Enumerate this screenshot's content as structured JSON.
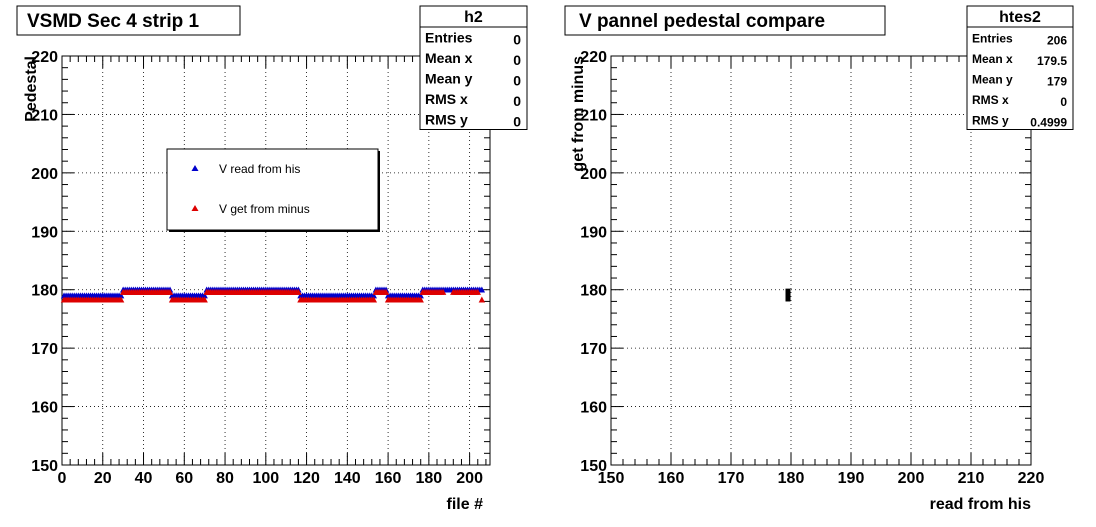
{
  "chart_data": [
    {
      "type": "scatter",
      "title": "VSMD Sec 4 strip 1",
      "xlabel": "file #",
      "ylabel": "Pedestal",
      "xlim": [
        0,
        210
      ],
      "ylim": [
        150,
        220
      ],
      "grid": true,
      "x_ticks": [
        "0",
        "20",
        "40",
        "60",
        "80",
        "100",
        "120",
        "140",
        "160",
        "180",
        "200"
      ],
      "y_ticks": [
        "150",
        "160",
        "170",
        "180",
        "190",
        "200",
        "210",
        "220"
      ],
      "stats": {
        "name": "h2",
        "rows": [
          {
            "label": "Entries",
            "value": "0"
          },
          {
            "label": "Mean x",
            "value": "0"
          },
          {
            "label": "Mean y",
            "value": "0"
          },
          {
            "label": "RMS x",
            "value": "0"
          },
          {
            "label": "RMS y",
            "value": "0"
          }
        ]
      },
      "legend": {
        "placement": "upper-middle",
        "entries": [
          {
            "label": "V read from his",
            "color": "#0000cc"
          },
          {
            "label": "V get from minus",
            "color": "#dd0000"
          }
        ]
      },
      "series": [
        {
          "name": "V read from his",
          "color": "#0000cc",
          "segments": [
            {
              "x_from": 1,
              "x_to": 29,
              "y": 179
            },
            {
              "x_from": 30,
              "x_to": 53,
              "y": 180
            },
            {
              "x_from": 54,
              "x_to": 70,
              "y": 179
            },
            {
              "x_from": 71,
              "x_to": 116,
              "y": 180
            },
            {
              "x_from": 117,
              "x_to": 153,
              "y": 179
            },
            {
              "x_from": 154,
              "x_to": 159,
              "y": 180
            },
            {
              "x_from": 160,
              "x_to": 176,
              "y": 179
            },
            {
              "x_from": 177,
              "x_to": 206,
              "y": 180
            }
          ]
        },
        {
          "name": "V get from minus",
          "color": "#dd0000",
          "segments": [
            {
              "x_from": 1,
              "x_to": 29,
              "y": 178.3
            },
            {
              "x_from": 30,
              "x_to": 53,
              "y": 179.6
            },
            {
              "x_from": 54,
              "x_to": 70,
              "y": 178.3
            },
            {
              "x_from": 71,
              "x_to": 116,
              "y": 179.6
            },
            {
              "x_from": 117,
              "x_to": 153,
              "y": 178.3
            },
            {
              "x_from": 154,
              "x_to": 159,
              "y": 179.6
            },
            {
              "x_from": 160,
              "x_to": 176,
              "y": 178.3
            },
            {
              "x_from": 177,
              "x_to": 187,
              "y": 179.6
            },
            {
              "x_from": 192,
              "x_to": 204,
              "y": 179.6
            },
            {
              "x_from": 206,
              "x_to": 206,
              "y": 178.3
            }
          ]
        }
      ]
    },
    {
      "type": "scatter",
      "title": "V pannel pedestal compare",
      "xlabel": "read from his",
      "ylabel": "get from minus",
      "xlim": [
        150,
        220
      ],
      "ylim": [
        150,
        220
      ],
      "grid": true,
      "x_ticks": [
        "150",
        "160",
        "170",
        "180",
        "190",
        "200",
        "210",
        "220"
      ],
      "y_ticks": [
        "150",
        "160",
        "170",
        "180",
        "190",
        "200",
        "210",
        "220"
      ],
      "stats": {
        "name": "htes2",
        "rows": [
          {
            "label": "Entries",
            "value": "206"
          },
          {
            "label": "Mean x",
            "value": "179.5"
          },
          {
            "label": "Mean y",
            "value": "179"
          },
          {
            "label": "RMS x",
            "value": "0"
          },
          {
            "label": "RMS y",
            "value": "0.4999"
          }
        ]
      },
      "points": [
        {
          "x": 179.5,
          "y": 179.5
        },
        {
          "x": 179.5,
          "y": 178.5
        }
      ]
    }
  ]
}
